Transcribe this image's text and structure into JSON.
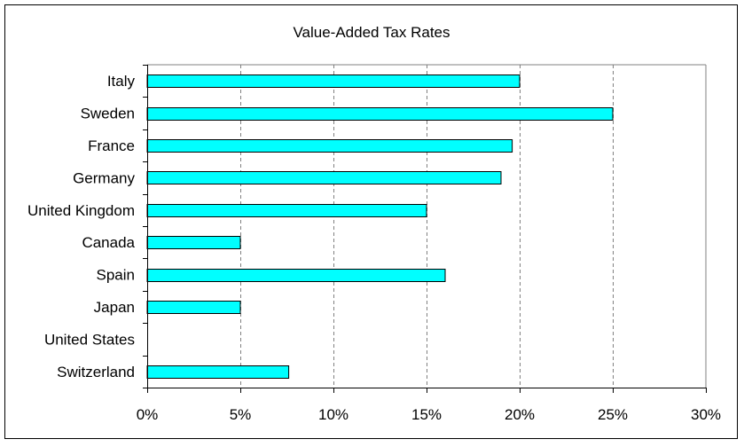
{
  "colors": {
    "bar_fill": "#00FFFF",
    "bar_stroke": "#000000",
    "gridline": "#808080",
    "axis": "#000000"
  },
  "chart_data": {
    "type": "bar",
    "orientation": "horizontal",
    "title": "Value-Added Tax Rates",
    "xlabel": "",
    "ylabel": "",
    "categories": [
      "Italy",
      "Sweden",
      "France",
      "Germany",
      "United Kingdom",
      "Canada",
      "Spain",
      "Japan",
      "United States",
      "Switzerland"
    ],
    "values": [
      20,
      25,
      19.6,
      19,
      15,
      5,
      16,
      5,
      0,
      7.6
    ],
    "value_unit": "%",
    "xlim": [
      0,
      30
    ],
    "x_ticks": [
      0,
      5,
      10,
      15,
      20,
      25,
      30
    ],
    "x_tick_labels": [
      "0%",
      "5%",
      "10%",
      "15%",
      "20%",
      "25%",
      "30%"
    ],
    "grid": "vertical dashed",
    "legend": "none"
  }
}
